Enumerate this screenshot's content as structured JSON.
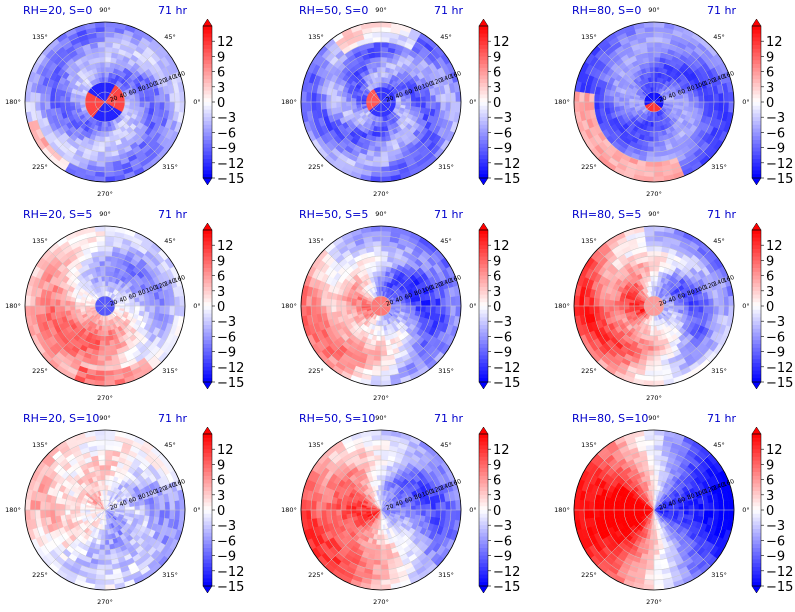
{
  "figure": {
    "colorbar": {
      "ticks": [
        "12",
        "9",
        "6",
        "3",
        "0",
        "−3",
        "−6",
        "−9",
        "−12",
        "−15"
      ],
      "tick_values": [
        12,
        9,
        6,
        3,
        0,
        -3,
        -6,
        -9,
        -12,
        -15
      ],
      "range": [
        -15,
        15
      ],
      "colormap": "bwr",
      "colors": {
        "low": "#0000ff",
        "mid": "#ffffff",
        "high": "#ff0000"
      }
    },
    "angle_labels": [
      "90°",
      "45°",
      "0°",
      "135°",
      "180°",
      "225°",
      "270°",
      "315°"
    ],
    "radial_labels": [
      "20",
      "40",
      "60",
      "80",
      "100",
      "120",
      "140",
      "160"
    ],
    "title_color": "#0000cc"
  },
  "chart_data": [
    {
      "type": "heatmap",
      "projection": "polar",
      "title": "RH=20, S=0",
      "time_label": "71 hr",
      "rmax": 160,
      "pattern": "core warm, outer cool"
    },
    {
      "type": "heatmap",
      "projection": "polar",
      "title": "RH=50, S=0",
      "time_label": "71 hr",
      "rmax": 160,
      "pattern": "mostly cool"
    },
    {
      "type": "heatmap",
      "projection": "polar",
      "title": "RH=80, S=0",
      "time_label": "71 hr",
      "rmax": 160,
      "pattern": "cool, warm outer SW arc"
    },
    {
      "type": "heatmap",
      "projection": "polar",
      "title": "RH=20, S=5",
      "time_label": "71 hr",
      "rmax": 160,
      "pattern": "warm south-west, cool north-east"
    },
    {
      "type": "heatmap",
      "projection": "polar",
      "title": "RH=50, S=5",
      "time_label": "71 hr",
      "rmax": 160,
      "pattern": "cool north-east, warm west"
    },
    {
      "type": "heatmap",
      "projection": "polar",
      "title": "RH=80, S=5",
      "time_label": "71 hr",
      "rmax": 160,
      "pattern": "warm west, cool east"
    },
    {
      "type": "heatmap",
      "projection": "polar",
      "title": "RH=20, S=10",
      "time_label": "71 hr",
      "rmax": 160,
      "pattern": "weak dipole"
    },
    {
      "type": "heatmap",
      "projection": "polar",
      "title": "RH=50, S=10",
      "time_label": "71 hr",
      "rmax": 160,
      "pattern": "warm west, cool east"
    },
    {
      "type": "heatmap",
      "projection": "polar",
      "title": "RH=80, S=10",
      "time_label": "71 hr",
      "rmax": 160,
      "pattern": "strong warm west, strong cool east"
    }
  ]
}
